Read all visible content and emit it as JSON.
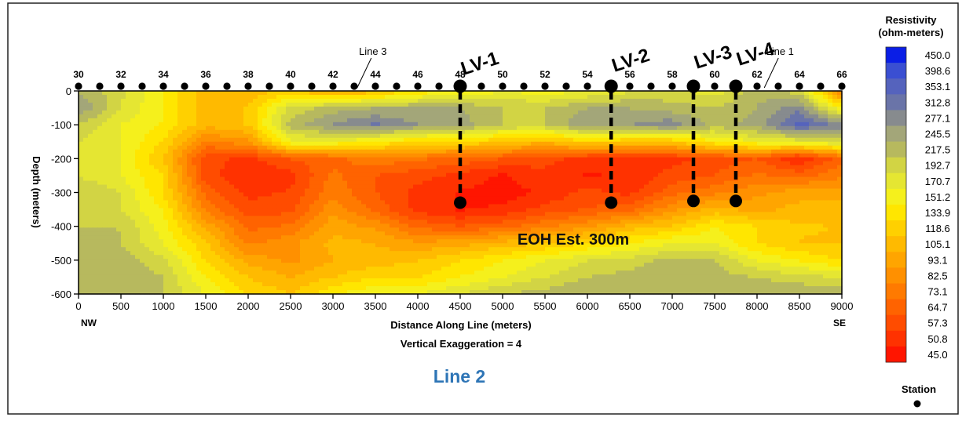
{
  "chart_data": {
    "type": "heatmap",
    "title": "Line 2",
    "xlabel": "Distance Along Line (meters)",
    "ylabel": "Depth (meters)",
    "subtitle": "Vertical Exaggeration = 4",
    "xlim": [
      0,
      9000
    ],
    "ylim": [
      -600,
      0
    ],
    "x_ticks": [
      0,
      500,
      1000,
      1500,
      2000,
      2500,
      3000,
      3500,
      4000,
      4500,
      5000,
      5500,
      6000,
      6500,
      7000,
      7500,
      8000,
      8500,
      9000
    ],
    "y_ticks": [
      0,
      -100,
      -200,
      -300,
      -400,
      -500,
      -600
    ],
    "x_end_labels": {
      "left": "NW",
      "right": "SE"
    },
    "station_labels": [
      30,
      32,
      34,
      36,
      38,
      40,
      42,
      44,
      46,
      48,
      50,
      52,
      54,
      56,
      58,
      60,
      62,
      64,
      66
    ],
    "station_spacing_m": 250,
    "line_crossings": [
      {
        "label": "Line 3",
        "x": 3100
      },
      {
        "label": "Line 1",
        "x": 7900
      }
    ],
    "boreholes": [
      {
        "label": "LV-1",
        "x": 4500,
        "top": 0,
        "bottom": -330
      },
      {
        "label": "LV-2",
        "x": 6280,
        "top": 0,
        "bottom": -330
      },
      {
        "label": "LV-3",
        "x": 7250,
        "top": 0,
        "bottom": -325
      },
      {
        "label": "LV-4",
        "x": 7750,
        "top": 0,
        "bottom": -325
      }
    ],
    "annotation": "EOH Est. 300m",
    "legend": {
      "title": "Resistivity\n(ohm-meters)",
      "placement": "right",
      "levels": [
        {
          "value": "450.0",
          "color": "#0a1ee6"
        },
        {
          "value": "398.6",
          "color": "#3a4fd2"
        },
        {
          "value": "353.1",
          "color": "#5563bd"
        },
        {
          "value": "312.8",
          "color": "#6a74a8"
        },
        {
          "value": "277.1",
          "color": "#878b8e"
        },
        {
          "value": "245.5",
          "color": "#a3a679"
        },
        {
          "value": "217.5",
          "color": "#b7b95e"
        },
        {
          "value": "192.7",
          "color": "#d2d444"
        },
        {
          "value": "170.7",
          "color": "#e5e632"
        },
        {
          "value": "151.2",
          "color": "#f5f01c"
        },
        {
          "value": "133.9",
          "color": "#ffe600"
        },
        {
          "value": "118.6",
          "color": "#ffd000"
        },
        {
          "value": "105.1",
          "color": "#ffba00"
        },
        {
          "value": "93.1",
          "color": "#ffa500"
        },
        {
          "value": "82.5",
          "color": "#ff9000"
        },
        {
          "value": "73.1",
          "color": "#ff7a00"
        },
        {
          "value": "64.7",
          "color": "#ff6300"
        },
        {
          "value": "57.3",
          "color": "#ff4c00"
        },
        {
          "value": "50.8",
          "color": "#ff3200"
        },
        {
          "value": "45.0",
          "color": "#ff1500"
        }
      ],
      "station_symbol_label": "Station"
    },
    "field_samples_x": [
      0,
      500,
      1000,
      1500,
      2000,
      2500,
      3000,
      3500,
      4000,
      4500,
      5000,
      5500,
      6000,
      6500,
      7000,
      7500,
      8000,
      8500,
      9000
    ],
    "field_samples_depth": [
      0,
      -50,
      -100,
      -150,
      -200,
      -250,
      -300,
      -350,
      -400,
      -450,
      -500,
      -550,
      -600
    ],
    "resistivity_grid": [
      [
        245,
        200,
        150,
        110,
        110,
        120,
        100,
        110,
        140,
        150,
        170,
        160,
        170,
        190,
        200,
        180,
        240,
        200,
        80
      ],
      [
        277,
        192,
        150,
        110,
        120,
        200,
        230,
        245,
        245,
        245,
        217,
        217,
        245,
        245,
        230,
        217,
        245,
        300,
        150
      ],
      [
        217,
        170,
        150,
        110,
        120,
        230,
        280,
        320,
        277,
        260,
        217,
        217,
        277,
        277,
        300,
        230,
        260,
        370,
        300
      ],
      [
        192,
        170,
        133,
        80,
        90,
        170,
        170,
        150,
        133,
        133,
        120,
        110,
        130,
        120,
        120,
        150,
        170,
        180,
        200
      ],
      [
        192,
        170,
        118,
        60,
        55,
        65,
        70,
        80,
        75,
        70,
        65,
        60,
        55,
        52,
        55,
        60,
        65,
        50,
        70
      ],
      [
        192,
        170,
        133,
        60,
        52,
        55,
        75,
        65,
        60,
        55,
        50,
        55,
        50,
        52,
        60,
        65,
        75,
        70,
        80
      ],
      [
        217,
        192,
        133,
        70,
        55,
        58,
        80,
        65,
        55,
        50,
        48,
        52,
        60,
        55,
        70,
        80,
        90,
        100,
        100
      ],
      [
        217,
        192,
        150,
        80,
        60,
        62,
        90,
        70,
        55,
        50,
        52,
        60,
        65,
        70,
        90,
        110,
        100,
        110,
        110
      ],
      [
        217,
        217,
        160,
        100,
        70,
        75,
        100,
        90,
        70,
        65,
        70,
        80,
        90,
        110,
        120,
        150,
        133,
        120,
        118
      ],
      [
        245,
        217,
        170,
        120,
        80,
        90,
        110,
        105,
        95,
        100,
        110,
        118,
        133,
        150,
        170,
        170,
        133,
        118,
        118
      ],
      [
        245,
        230,
        200,
        133,
        100,
        90,
        105,
        110,
        118,
        133,
        150,
        170,
        192,
        200,
        230,
        217,
        170,
        150,
        133
      ],
      [
        245,
        245,
        217,
        150,
        118,
        105,
        118,
        133,
        133,
        151,
        170,
        192,
        217,
        230,
        245,
        230,
        217,
        200,
        192
      ],
      [
        245,
        245,
        217,
        170,
        133,
        118,
        150,
        170,
        170,
        192,
        217,
        230,
        245,
        245,
        245,
        245,
        245,
        245,
        245
      ]
    ]
  }
}
